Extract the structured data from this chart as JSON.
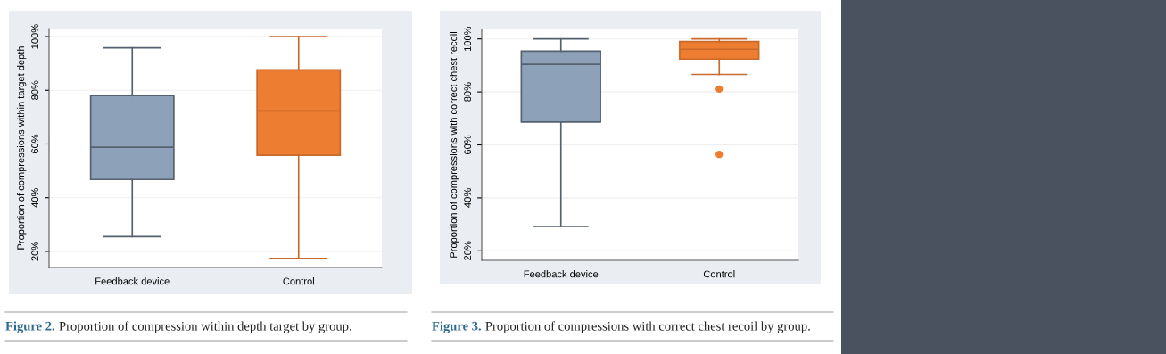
{
  "chart_data": [
    {
      "type": "box",
      "categories": [
        "Feedback device",
        "Control"
      ],
      "ylabel": "Proportion of compressions within target depth",
      "boxes": [
        {
          "low": 25.5,
          "q1": 46.8,
          "median": 58.8,
          "q3": 78,
          "high": 95.8
        },
        {
          "low": 17.4,
          "q1": 55.8,
          "median": 72.3,
          "q3": 87.6,
          "high": 100
        }
      ],
      "colors": [
        "#8da2b8",
        "#ed7d31"
      ],
      "ylim": [
        14,
        103
      ],
      "yticks": [
        {
          "value": 20,
          "label": "20%"
        },
        {
          "value": 40,
          "label": "40%"
        },
        {
          "value": 60,
          "label": "60%"
        },
        {
          "value": 80,
          "label": "80%"
        },
        {
          "value": 100,
          "label": "100%"
        }
      ],
      "grid": "y",
      "annotations": [
        "Figure 2.",
        "Proportion of compression within depth target by group."
      ]
    },
    {
      "type": "box",
      "categories": [
        "Feedback device",
        "Control"
      ],
      "ylabel": "Proportion of compressions with correct chest recoil",
      "boxes": [
        {
          "low": 29.2,
          "q1": 68.6,
          "median": 90.4,
          "q3": 95.4,
          "high": 100
        },
        {
          "low": 86.6,
          "q1": 92.4,
          "median": 96.1,
          "q3": 99,
          "high": 100,
          "outliers": [
            81.1,
            56.4
          ]
        }
      ],
      "colors": [
        "#8da2b8",
        "#ed7d31"
      ],
      "ylim": [
        16.4,
        103.6
      ],
      "yticks": [
        {
          "value": 20,
          "label": "20%"
        },
        {
          "value": 40,
          "label": "40%"
        },
        {
          "value": 60,
          "label": "60%"
        },
        {
          "value": 80,
          "label": "80%"
        },
        {
          "value": 100,
          "label": "100%"
        }
      ],
      "grid": "y",
      "annotations": [
        "Figure 3.",
        "Proportion of compressions with correct chest recoil by group."
      ]
    }
  ]
}
